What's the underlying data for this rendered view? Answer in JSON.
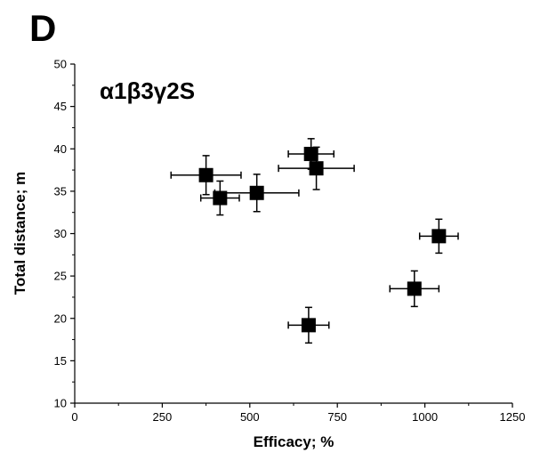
{
  "panel_label": "D",
  "chart_data": {
    "type": "scatter",
    "annotation": "α1β3γ2S",
    "xlabel": "Efficacy; %",
    "ylabel": "Total distance; m",
    "xlim": [
      0,
      1250
    ],
    "ylim": [
      10,
      50
    ],
    "x_ticks": [
      0,
      250,
      500,
      750,
      1000,
      1250
    ],
    "y_ticks": [
      10,
      15,
      20,
      25,
      30,
      35,
      40,
      45,
      50
    ],
    "grid": false,
    "legend": "none",
    "marker": "filled-square",
    "color": "#000000",
    "points": [
      {
        "x": 375,
        "y": 36.9,
        "xerr": 100,
        "yerr": 2.3
      },
      {
        "x": 415,
        "y": 34.2,
        "xerr": 55,
        "yerr": 2.0
      },
      {
        "x": 520,
        "y": 34.8,
        "xerr": 120,
        "yerr": 2.2
      },
      {
        "x": 668,
        "y": 19.2,
        "xerr": 58,
        "yerr": 2.1
      },
      {
        "x": 675,
        "y": 39.4,
        "xerr": 65,
        "yerr": 1.8
      },
      {
        "x": 690,
        "y": 37.7,
        "xerr": 108,
        "yerr": 2.5
      },
      {
        "x": 970,
        "y": 23.5,
        "xerr": 70,
        "yerr": 2.1
      },
      {
        "x": 1040,
        "y": 29.7,
        "xerr": 55,
        "yerr": 2.0
      }
    ]
  }
}
